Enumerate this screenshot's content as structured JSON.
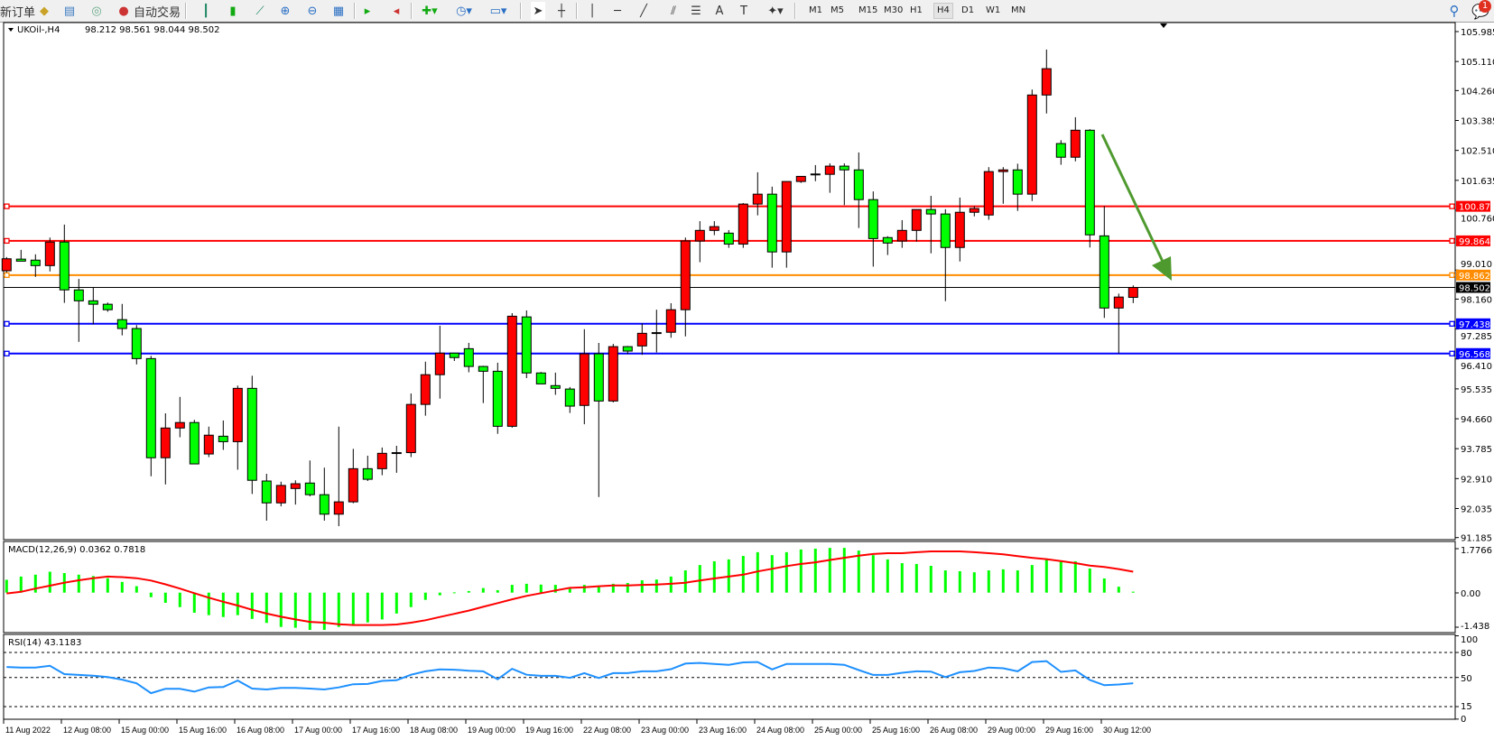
{
  "toolbar": {
    "new_order": "新订单",
    "auto_trading": "自动交易",
    "timeframes": [
      "M1",
      "M5",
      "M15",
      "M30",
      "H1",
      "H4",
      "D1",
      "W1",
      "MN"
    ],
    "active_timeframe": "H4",
    "notification_count": "1",
    "icons": [
      "experts-icon",
      "data-window-icon",
      "signals-icon",
      "auto-trading-icon",
      "bar-chart-icon",
      "candlestick-icon",
      "line-chart-icon",
      "zoom-in-icon",
      "zoom-out-icon",
      "tile-windows-icon",
      "auto-scroll-icon",
      "chart-shift-icon",
      "new-chart-icon",
      "periods-icon",
      "templates-icon",
      "cursor-icon",
      "crosshair-icon",
      "vertical-line-icon",
      "horizontal-line-icon",
      "trendline-icon",
      "equidistant-channel-icon",
      "fibonacci-icon",
      "text-icon",
      "text-label-icon",
      "shapes-icon",
      "search-icon",
      "notifications-icon"
    ]
  },
  "chart": {
    "symbol": "UKOil-,H4",
    "ohlc": "98.212 98.561 98.044 98.502",
    "bull_color": "#ff0000",
    "bear_color": "#00ff00",
    "price_ticks": [
      "105.985",
      "105.110",
      "104.260",
      "103.385",
      "102.510",
      "101.635",
      "100.760",
      "99.010",
      "98.160",
      "97.285",
      "96.410",
      "95.535",
      "94.660",
      "93.785",
      "92.910",
      "92.035",
      "91.185"
    ],
    "current_price": "98.502",
    "levels": [
      {
        "price": "100.874",
        "color": "#ff0000"
      },
      {
        "price": "99.864",
        "color": "#ff0000"
      },
      {
        "price": "98.862",
        "color": "#ff8c00"
      },
      {
        "price": "97.438",
        "color": "#0000ff"
      },
      {
        "price": "96.568",
        "color": "#0000ff"
      }
    ],
    "arrow_color": "#4f9a2f",
    "candles": [
      [
        98.99,
        99.39,
        98.94,
        99.34
      ],
      [
        99.33,
        99.6,
        99.27,
        99.27
      ],
      [
        99.3,
        99.47,
        98.81,
        99.14
      ],
      [
        99.14,
        99.96,
        98.97,
        99.83
      ],
      [
        99.83,
        100.34,
        98.05,
        98.43
      ],
      [
        98.43,
        98.75,
        96.91,
        98.11
      ],
      [
        98.11,
        98.51,
        97.42,
        98.01
      ],
      [
        98.01,
        98.06,
        97.79,
        97.85
      ],
      [
        97.56,
        98.02,
        97.1,
        97.3
      ],
      [
        97.3,
        97.4,
        96.25,
        96.42
      ],
      [
        96.42,
        96.5,
        92.98,
        93.52
      ],
      [
        93.52,
        94.82,
        92.74,
        94.39
      ],
      [
        94.39,
        95.3,
        94.12,
        94.55
      ],
      [
        94.55,
        94.63,
        93.34,
        93.34
      ],
      [
        93.63,
        94.43,
        93.54,
        94.18
      ],
      [
        94.15,
        94.61,
        93.75,
        93.99
      ],
      [
        93.99,
        95.63,
        93.17,
        95.55
      ],
      [
        95.55,
        95.92,
        92.46,
        92.86
      ],
      [
        92.84,
        93.05,
        91.68,
        92.2
      ],
      [
        92.2,
        92.82,
        92.1,
        92.71
      ],
      [
        92.62,
        92.86,
        92.15,
        92.76
      ],
      [
        92.78,
        93.44,
        92.39,
        92.44
      ],
      [
        92.44,
        93.23,
        91.68,
        91.87
      ],
      [
        91.87,
        94.43,
        91.52,
        92.23
      ],
      [
        92.23,
        93.78,
        92.19,
        93.2
      ],
      [
        93.2,
        93.58,
        92.84,
        92.89
      ],
      [
        93.2,
        93.82,
        93.01,
        93.65
      ],
      [
        93.66,
        93.87,
        93.08,
        93.67
      ],
      [
        93.67,
        95.4,
        93.54,
        95.08
      ],
      [
        95.08,
        96.33,
        94.75,
        95.95
      ],
      [
        95.95,
        97.38,
        95.25,
        96.58
      ],
      [
        96.58,
        96.58,
        96.35,
        96.45
      ],
      [
        96.71,
        96.88,
        96.02,
        96.19
      ],
      [
        96.19,
        96.21,
        95.12,
        96.05
      ],
      [
        96.05,
        96.3,
        94.22,
        94.44
      ],
      [
        94.44,
        97.75,
        94.4,
        97.66
      ],
      [
        97.64,
        97.83,
        95.85,
        96.0
      ],
      [
        96.0,
        96.03,
        95.68,
        95.68
      ],
      [
        95.63,
        96.01,
        95.36,
        95.55
      ],
      [
        95.53,
        95.59,
        94.83,
        95.03
      ],
      [
        95.05,
        97.28,
        94.5,
        96.56
      ],
      [
        96.56,
        96.88,
        92.37,
        95.18
      ],
      [
        95.18,
        96.85,
        95.14,
        96.77
      ],
      [
        96.77,
        96.79,
        96.55,
        96.64
      ],
      [
        96.79,
        97.45,
        96.53,
        97.16
      ],
      [
        97.17,
        97.85,
        96.6,
        97.18
      ],
      [
        97.19,
        98.04,
        97.03,
        97.85
      ],
      [
        97.85,
        99.96,
        97.07,
        99.86
      ],
      [
        99.86,
        100.44,
        99.24,
        100.17
      ],
      [
        100.17,
        100.44,
        100.03,
        100.28
      ],
      [
        100.09,
        100.18,
        99.66,
        99.77
      ],
      [
        99.77,
        100.97,
        99.66,
        100.94
      ],
      [
        100.94,
        101.87,
        100.61,
        101.23
      ],
      [
        101.23,
        101.45,
        99.08,
        99.54
      ],
      [
        99.54,
        101.6,
        99.08,
        101.6
      ],
      [
        101.6,
        101.75,
        101.56,
        101.75
      ],
      [
        101.81,
        102.08,
        101.61,
        101.82
      ],
      [
        101.81,
        102.13,
        101.27,
        102.05
      ],
      [
        102.05,
        102.13,
        100.91,
        101.94
      ],
      [
        101.94,
        102.45,
        100.24,
        101.07
      ],
      [
        101.07,
        101.31,
        99.11,
        99.93
      ],
      [
        99.96,
        100.0,
        99.45,
        99.8
      ],
      [
        99.86,
        100.47,
        99.66,
        100.17
      ],
      [
        100.17,
        100.78,
        99.84,
        100.78
      ],
      [
        100.78,
        101.18,
        99.5,
        100.65
      ],
      [
        100.65,
        100.79,
        98.1,
        99.67
      ],
      [
        99.67,
        101.13,
        99.26,
        100.7
      ],
      [
        100.7,
        100.88,
        100.58,
        100.81
      ],
      [
        100.62,
        102.02,
        100.48,
        101.89
      ],
      [
        101.89,
        102.02,
        100.95,
        101.94
      ],
      [
        101.94,
        102.12,
        100.74,
        101.23
      ],
      [
        101.23,
        104.29,
        101.03,
        104.13
      ],
      [
        104.13,
        105.46,
        103.59,
        104.9
      ],
      [
        102.71,
        102.81,
        102.09,
        102.31
      ],
      [
        102.31,
        103.48,
        102.19,
        103.1
      ],
      [
        103.1,
        103.13,
        99.67,
        100.04
      ],
      [
        100.01,
        100.88,
        97.61,
        97.9
      ],
      [
        97.9,
        98.32,
        96.57,
        98.22
      ],
      [
        98.212,
        98.561,
        98.044,
        98.502
      ]
    ],
    "time_labels": [
      "11 Aug 2022",
      "12 Aug 08:00",
      "15 Aug 00:00",
      "15 Aug 16:00",
      "16 Aug 08:00",
      "17 Aug 00:00",
      "17 Aug 16:00",
      "18 Aug 08:00",
      "19 Aug 00:00",
      "19 Aug 16:00",
      "22 Aug 08:00",
      "23 Aug 00:00",
      "23 Aug 16:00",
      "24 Aug 08:00",
      "25 Aug 00:00",
      "25 Aug 16:00",
      "26 Aug 08:00",
      "29 Aug 00:00",
      "29 Aug 16:00",
      "30 Aug 12:00"
    ]
  },
  "macd": {
    "label": "MACD(12,26,9) 0.0362 0.7818",
    "ticks": [
      "1.7766",
      "0.00",
      "-1.438"
    ],
    "hist_color": "#00ff00",
    "signal_color": "#ff0000",
    "histogram": [
      0.48,
      0.6,
      0.67,
      0.78,
      0.73,
      0.67,
      0.62,
      0.54,
      0.4,
      0.24,
      -0.17,
      -0.38,
      -0.54,
      -0.75,
      -0.84,
      -0.91,
      -0.84,
      -0.98,
      -1.13,
      -1.28,
      -1.31,
      -1.39,
      -1.39,
      -1.28,
      -1.2,
      -1.11,
      -1.0,
      -0.78,
      -0.54,
      -0.27,
      -0.1,
      0.01,
      0.06,
      0.17,
      0.09,
      0.29,
      0.33,
      0.3,
      0.29,
      0.15,
      0.29,
      0.24,
      0.33,
      0.36,
      0.46,
      0.49,
      0.6,
      0.83,
      1.03,
      1.17,
      1.24,
      1.37,
      1.51,
      1.4,
      1.51,
      1.61,
      1.64,
      1.67,
      1.67,
      1.57,
      1.4,
      1.24,
      1.1,
      1.07,
      1.0,
      0.83,
      0.8,
      0.76,
      0.83,
      0.87,
      0.83,
      1.03,
      1.24,
      1.17,
      1.17,
      0.9,
      0.53,
      0.22,
      0.0362
    ],
    "signal": [
      -0.03,
      0.03,
      0.15,
      0.26,
      0.37,
      0.46,
      0.54,
      0.6,
      0.58,
      0.54,
      0.45,
      0.31,
      0.15,
      -0.02,
      -0.19,
      -0.34,
      -0.48,
      -0.64,
      -0.78,
      -0.9,
      -1.0,
      -1.09,
      -1.12,
      -1.18,
      -1.21,
      -1.21,
      -1.21,
      -1.19,
      -1.12,
      -1.03,
      -0.91,
      -0.79,
      -0.67,
      -0.53,
      -0.39,
      -0.25,
      -0.12,
      -0.02,
      0.08,
      0.18,
      0.2,
      0.24,
      0.27,
      0.27,
      0.29,
      0.3,
      0.33,
      0.37,
      0.45,
      0.53,
      0.6,
      0.67,
      0.79,
      0.89,
      0.99,
      1.07,
      1.13,
      1.22,
      1.3,
      1.38,
      1.44,
      1.47,
      1.47,
      1.51,
      1.54,
      1.54,
      1.54,
      1.51,
      1.47,
      1.43,
      1.36,
      1.3,
      1.25,
      1.18,
      1.1,
      1.01,
      0.96,
      0.88,
      0.7818
    ]
  },
  "rsi": {
    "label": "RSI(14) 43.1183",
    "ticks": [
      "100",
      "80",
      "50",
      "15",
      "0"
    ],
    "line_color": "#1e90ff",
    "values": [
      62.6,
      61.9,
      61.9,
      64,
      54,
      53,
      52.2,
      50.4,
      47.4,
      43,
      31.1,
      36.3,
      36.3,
      33,
      38.1,
      38.5,
      46.3,
      36.7,
      35.6,
      37.4,
      37.4,
      36.7,
      35.6,
      38.1,
      41.9,
      42.2,
      45.9,
      46.7,
      53.3,
      57.4,
      59.6,
      59.3,
      58.1,
      57.4,
      47.8,
      60.4,
      53.3,
      51.9,
      51.9,
      49.6,
      55.2,
      49.3,
      55.2,
      55.2,
      57.4,
      57.4,
      60,
      66.7,
      67.4,
      66.3,
      65.2,
      68.1,
      68.5,
      59.6,
      66.3,
      66.3,
      66.3,
      66.3,
      65.2,
      58.9,
      53,
      53,
      55.6,
      57.4,
      57,
      50.4,
      56.3,
      57.8,
      61.9,
      61.1,
      57.4,
      68.5,
      69.6,
      56.7,
      58.5,
      47,
      40.7,
      41.5,
      43.1183
    ]
  }
}
